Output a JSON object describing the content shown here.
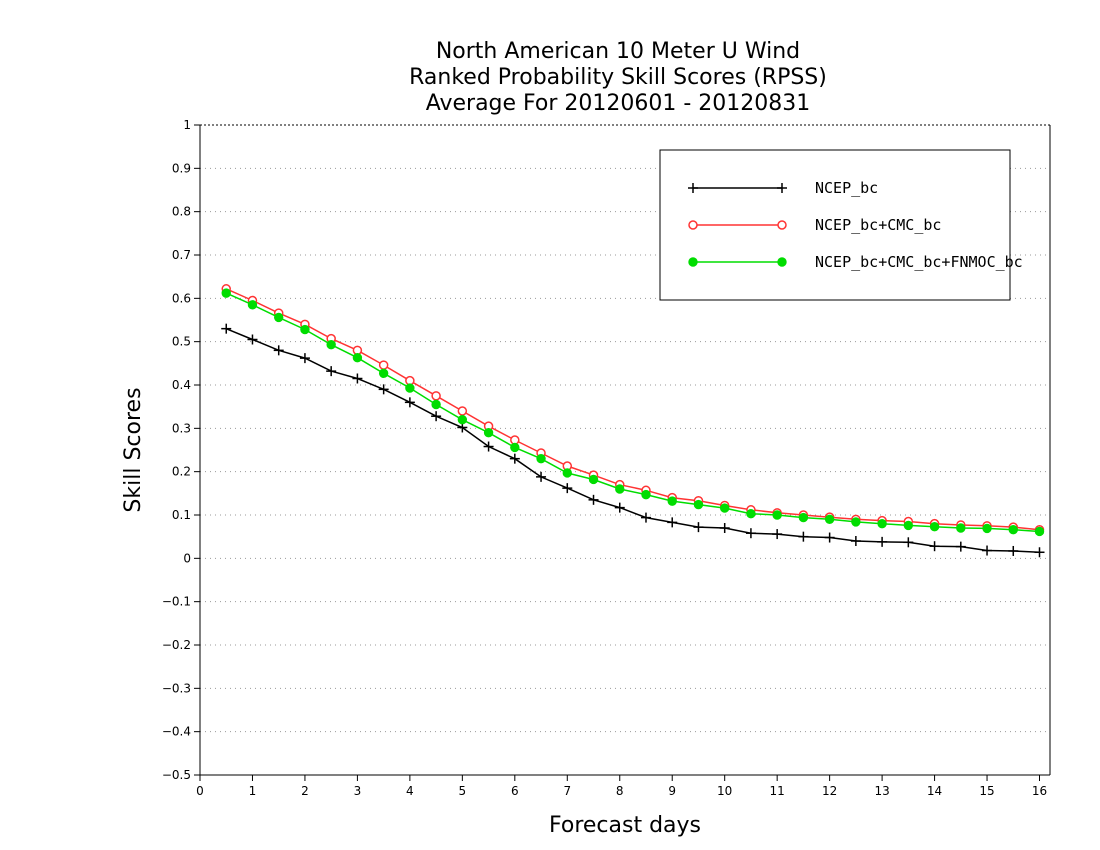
{
  "chart_data": {
    "type": "line",
    "title": [
      "North American 10 Meter U Wind",
      "Ranked Probability Skill Scores (RPSS)",
      "Average For 20120601 - 20120831"
    ],
    "xlabel": "Forecast days",
    "ylabel": "Skill Scores",
    "xlim": [
      0,
      16.2
    ],
    "ylim": [
      -0.5,
      1
    ],
    "xticks": [
      0,
      1,
      2,
      3,
      4,
      5,
      6,
      7,
      8,
      9,
      10,
      11,
      12,
      13,
      14,
      15,
      16
    ],
    "yticks": [
      -0.5,
      -0.4,
      -0.3,
      -0.2,
      -0.1,
      0,
      0.1,
      0.2,
      0.3,
      0.4,
      0.5,
      0.6,
      0.7,
      0.8,
      0.9,
      1
    ],
    "xtick_labels": [
      "0",
      "1",
      "2",
      "3",
      "4",
      "5",
      "6",
      "7",
      "8",
      "9",
      "10",
      "11",
      "12",
      "13",
      "14",
      "15",
      "16"
    ],
    "ytick_labels": [
      "−0.5",
      "−0.4",
      "−0.3",
      "−0.2",
      "−0.1",
      "0",
      "0.1",
      "0.2",
      "0.3",
      "0.4",
      "0.5",
      "0.6",
      "0.7",
      "0.8",
      "0.9",
      "1"
    ],
    "grid": "horizontal dotted",
    "legend_position": "top-right",
    "x": [
      0.5,
      1.0,
      1.5,
      2.0,
      2.5,
      3.0,
      3.5,
      4.0,
      4.5,
      5.0,
      5.5,
      6.0,
      6.5,
      7.0,
      7.5,
      8.0,
      8.5,
      9.0,
      9.5,
      10.0,
      10.5,
      11.0,
      11.5,
      12.0,
      12.5,
      13.0,
      13.5,
      14.0,
      14.5,
      15.0,
      15.5,
      16.0
    ],
    "series": [
      {
        "name": "NCEP_bc",
        "color": "#000000",
        "marker": "plus",
        "values": [
          0.53,
          0.505,
          0.48,
          0.462,
          0.432,
          0.415,
          0.39,
          0.36,
          0.328,
          0.302,
          0.258,
          0.23,
          0.188,
          0.162,
          0.135,
          0.117,
          0.094,
          0.083,
          0.072,
          0.07,
          0.058,
          0.056,
          0.05,
          0.048,
          0.04,
          0.038,
          0.037,
          0.028,
          0.027,
          0.018,
          0.017,
          0.014
        ]
      },
      {
        "name": "NCEP_bc+CMC_bc",
        "color": "#ff3333",
        "marker": "open-circle",
        "values": [
          0.622,
          0.595,
          0.566,
          0.54,
          0.507,
          0.48,
          0.446,
          0.41,
          0.375,
          0.34,
          0.305,
          0.273,
          0.243,
          0.213,
          0.192,
          0.17,
          0.157,
          0.14,
          0.133,
          0.122,
          0.112,
          0.105,
          0.1,
          0.095,
          0.09,
          0.087,
          0.085,
          0.08,
          0.077,
          0.075,
          0.072,
          0.066
        ]
      },
      {
        "name": "NCEP_bc+CMC_bc+FNMOC_bc",
        "color": "#00dd00",
        "marker": "filled-circle",
        "values": [
          0.612,
          0.585,
          0.556,
          0.528,
          0.493,
          0.463,
          0.427,
          0.393,
          0.355,
          0.32,
          0.29,
          0.256,
          0.23,
          0.197,
          0.182,
          0.16,
          0.147,
          0.132,
          0.124,
          0.116,
          0.103,
          0.1,
          0.094,
          0.09,
          0.084,
          0.08,
          0.076,
          0.073,
          0.07,
          0.069,
          0.066,
          0.062
        ]
      }
    ]
  }
}
